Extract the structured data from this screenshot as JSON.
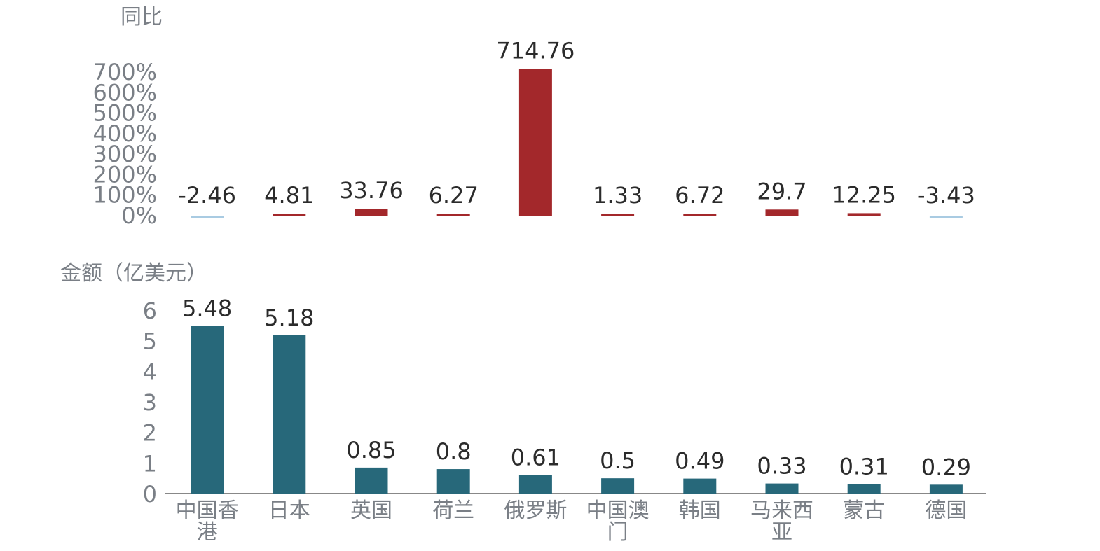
{
  "chart_data": [
    {
      "type": "bar",
      "ylabel": "同比",
      "ylim": [
        0,
        700
      ],
      "yticks": [
        "0%",
        "100%",
        "200%",
        "300%",
        "400%",
        "500%",
        "600%",
        "700%"
      ],
      "categories": [
        "中国香港",
        "日本",
        "英国",
        "荷兰",
        "俄罗斯",
        "中国澳门",
        "韩国",
        "马来西亚",
        "蒙古",
        "德国"
      ],
      "values": [
        -2.46,
        4.81,
        33.76,
        6.27,
        714.76,
        1.33,
        6.72,
        29.7,
        12.25,
        -3.43
      ],
      "value_labels": [
        "-2.46",
        "4.81",
        "33.76",
        "6.27",
        "714.76",
        "1.33",
        "6.72",
        "29.7",
        "12.25",
        "-3.43"
      ],
      "colors": {
        "positive": "#a3282b",
        "negative": "#a9cbe2"
      }
    },
    {
      "type": "bar",
      "ylabel": "金额（亿美元）",
      "ylim": [
        0,
        6
      ],
      "yticks": [
        "0",
        "1",
        "2",
        "3",
        "4",
        "5",
        "6"
      ],
      "categories": [
        "中国香港",
        "日本",
        "英国",
        "荷兰",
        "俄罗斯",
        "中国澳门",
        "韩国",
        "马来西亚",
        "蒙古",
        "德国"
      ],
      "category_lines": [
        [
          "中国香",
          "港"
        ],
        [
          "日本"
        ],
        [
          "英国"
        ],
        [
          "荷兰"
        ],
        [
          "俄罗斯"
        ],
        [
          "中国澳",
          "门"
        ],
        [
          "韩国"
        ],
        [
          "马来西",
          "亚"
        ],
        [
          "蒙古"
        ],
        [
          "德国"
        ]
      ],
      "values": [
        5.48,
        5.18,
        0.85,
        0.8,
        0.61,
        0.5,
        0.49,
        0.33,
        0.31,
        0.29
      ],
      "value_labels": [
        "5.48",
        "5.18",
        "0.85",
        "0.8",
        "0.61",
        "0.5",
        "0.49",
        "0.33",
        "0.31",
        "0.29"
      ],
      "colors": {
        "bar": "#27687a",
        "axis": "#888888"
      }
    }
  ]
}
